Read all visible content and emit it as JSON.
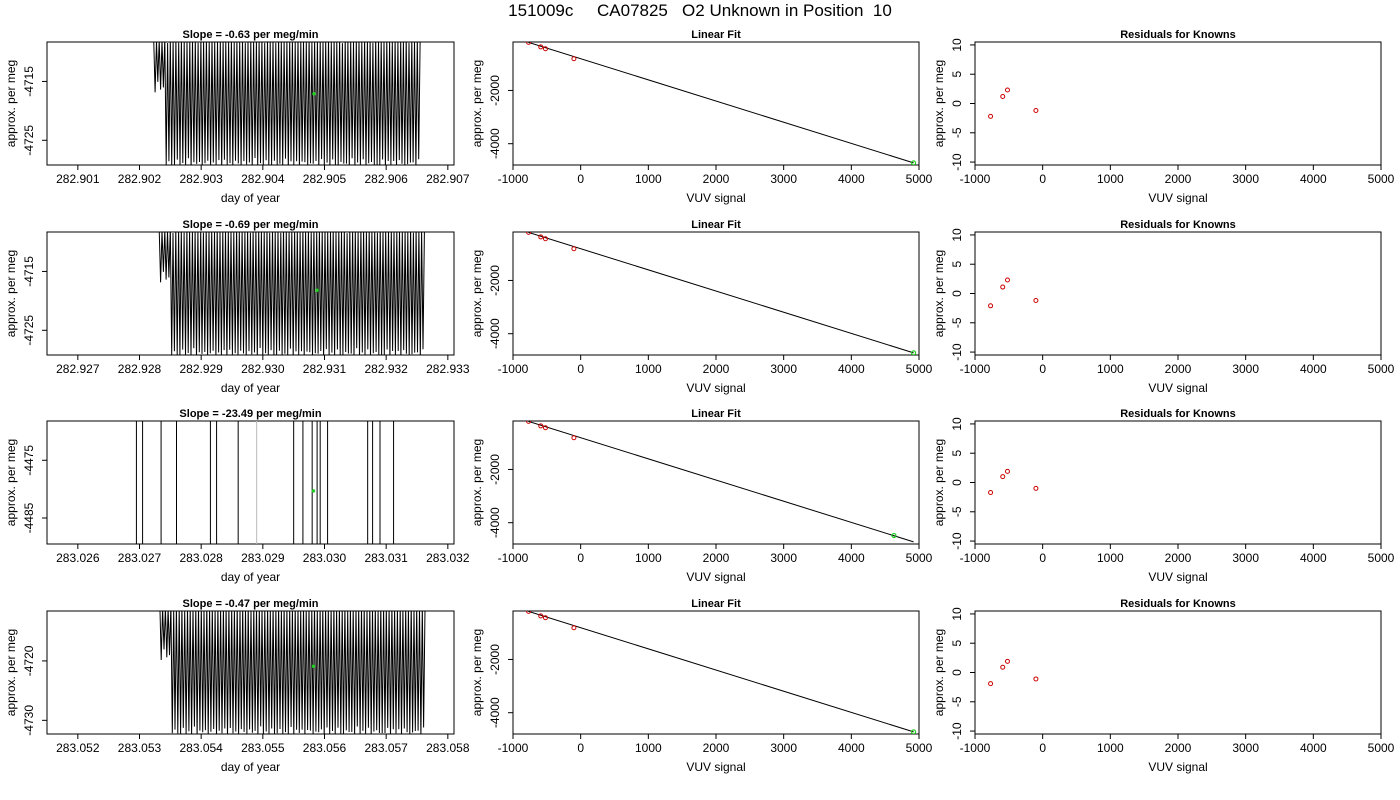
{
  "page": {
    "title": "151009c     CA07825   O2 Unknown in Position  10"
  },
  "colors": {
    "trace": "#000000",
    "known_points": "#cc0000",
    "unknown_point": "#22cc22",
    "axis": "#000000"
  },
  "chart_data": [
    {
      "type": "line",
      "title": "Slope =  -0.63  per meg/min",
      "xlabel": "day of year",
      "ylabel": "approx. per meg",
      "xlim": [
        282.9005,
        282.9071
      ],
      "ylim": [
        -4729.2,
        -4708.3
      ],
      "xticks": [
        282.901,
        282.902,
        282.903,
        282.904,
        282.905,
        282.906,
        282.907
      ],
      "xtick_labels": [
        "282.901",
        "282.902",
        "282.903",
        "282.904",
        "282.905",
        "282.906",
        "282.907"
      ],
      "yticks": [
        -4715,
        -4725
      ],
      "ytick_labels": [
        "-4715",
        "-4725"
      ],
      "trace": {
        "x_start": 282.90223,
        "x_end": 282.90655,
        "cycles": 96,
        "y_mid": -4718,
        "amplitude": 12,
        "regions": [
          {
            "from": 282.90223,
            "to": 282.90243,
            "high": -4708,
            "low": -4716
          },
          {
            "from": 282.90243,
            "to": 282.90655,
            "high": -4708,
            "low": -4729
          }
        ]
      },
      "highlight": {
        "x": 282.90483,
        "y": -4717.1
      }
    },
    {
      "type": "scatter",
      "title": "Linear Fit",
      "xlabel": "VUV signal",
      "ylabel": "approx. per meg",
      "xlim": [
        -1000,
        5000
      ],
      "ylim": [
        -4800,
        -180
      ],
      "xticks": [
        -1000,
        0,
        1000,
        2000,
        3000,
        4000,
        5000
      ],
      "xtick_labels": [
        "-1000",
        "0",
        "1000",
        "2000",
        "3000",
        "4000",
        "5000"
      ],
      "yticks": [
        -2000,
        -4000
      ],
      "ytick_labels": [
        "-2000",
        "-4000"
      ],
      "known_points": [
        [
          -770,
          -195
        ],
        [
          -590,
          -365
        ],
        [
          -520,
          -435
        ],
        [
          -100,
          -810
        ]
      ],
      "unknown_point": [
        4920,
        -4720
      ],
      "fit_line": [
        [
          -770,
          -195
        ],
        [
          4920,
          -4720
        ]
      ]
    },
    {
      "type": "scatter",
      "title": "Residuals for Knowns",
      "xlabel": "VUV signal",
      "ylabel": "approx. per meg",
      "xlim": [
        -1000,
        5000
      ],
      "ylim": [
        -10.5,
        10.5
      ],
      "xticks": [
        -1000,
        0,
        1000,
        2000,
        3000,
        4000,
        5000
      ],
      "xtick_labels": [
        "-1000",
        "0",
        "1000",
        "2000",
        "3000",
        "4000",
        "5000"
      ],
      "yticks": [
        10,
        5,
        0,
        -5,
        -10
      ],
      "ytick_labels": [
        "10",
        "5",
        "0",
        "-5",
        "-10"
      ],
      "points": [
        [
          -770,
          -2.2
        ],
        [
          -590,
          1.2
        ],
        [
          -520,
          2.3
        ],
        [
          -100,
          -1.2
        ]
      ]
    },
    {
      "type": "line",
      "title": "Slope =  -0.69  per meg/min",
      "xlabel": "day of year",
      "ylabel": "approx. per meg",
      "xlim": [
        282.9265,
        282.9331
      ],
      "ylim": [
        -4729.2,
        -4708.3
      ],
      "xticks": [
        282.927,
        282.928,
        282.929,
        282.93,
        282.931,
        282.932,
        282.933
      ],
      "xtick_labels": [
        "282.927",
        "282.928",
        "282.929",
        "282.930",
        "282.931",
        "282.932",
        "282.933"
      ],
      "yticks": [
        -4715,
        -4725
      ],
      "ytick_labels": [
        "-4715",
        "-4725"
      ],
      "trace": {
        "x_start": 282.92832,
        "x_end": 282.93262,
        "cycles": 96,
        "regions": [
          {
            "from": 282.92832,
            "to": 282.9285,
            "high": -4708,
            "low": -4716
          },
          {
            "from": 282.9285,
            "to": 282.93262,
            "high": -4708,
            "low": -4729
          }
        ]
      },
      "highlight": {
        "x": 282.93088,
        "y": -4718.2
      }
    },
    {
      "type": "scatter",
      "title": "Linear Fit",
      "xlabel": "VUV signal",
      "ylabel": "approx. per meg",
      "xlim": [
        -1000,
        5000
      ],
      "ylim": [
        -4800,
        -180
      ],
      "xticks": [
        -1000,
        0,
        1000,
        2000,
        3000,
        4000,
        5000
      ],
      "xtick_labels": [
        "-1000",
        "0",
        "1000",
        "2000",
        "3000",
        "4000",
        "5000"
      ],
      "yticks": [
        -2000,
        -4000
      ],
      "ytick_labels": [
        "-2000",
        "-4000"
      ],
      "known_points": [
        [
          -770,
          -195
        ],
        [
          -590,
          -365
        ],
        [
          -520,
          -435
        ],
        [
          -100,
          -810
        ]
      ],
      "unknown_point": [
        4920,
        -4720
      ],
      "fit_line": [
        [
          -770,
          -195
        ],
        [
          4920,
          -4720
        ]
      ]
    },
    {
      "type": "scatter",
      "title": "Residuals for Knowns",
      "xlabel": "VUV signal",
      "ylabel": "approx. per meg",
      "xlim": [
        -1000,
        5000
      ],
      "ylim": [
        -10.5,
        10.5
      ],
      "xticks": [
        -1000,
        0,
        1000,
        2000,
        3000,
        4000,
        5000
      ],
      "xtick_labels": [
        "-1000",
        "0",
        "1000",
        "2000",
        "3000",
        "4000",
        "5000"
      ],
      "yticks": [
        10,
        5,
        0,
        -5,
        -10
      ],
      "ytick_labels": [
        "10",
        "5",
        "0",
        "-5",
        "-10"
      ],
      "points": [
        [
          -770,
          -2.1
        ],
        [
          -590,
          1.1
        ],
        [
          -520,
          2.3
        ],
        [
          -100,
          -1.2
        ]
      ]
    },
    {
      "type": "line",
      "title": "Slope =  -23.49  per meg/min",
      "xlabel": "day of year",
      "ylabel": "approx. per meg",
      "xlim": [
        283.0255,
        283.0321
      ],
      "ylim": [
        -4489.5,
        -4468.2
      ],
      "xticks": [
        283.026,
        283.027,
        283.028,
        283.029,
        283.03,
        283.031,
        283.032
      ],
      "xtick_labels": [
        "283.026",
        "283.027",
        "283.028",
        "283.029",
        "283.030",
        "283.031",
        "283.032"
      ],
      "yticks": [
        -4475,
        -4485
      ],
      "ytick_labels": [
        "-4475",
        "-4485"
      ],
      "spikes": [
        283.02695,
        283.02705,
        283.02735,
        283.0276,
        283.02815,
        283.02825,
        283.0286,
        283.0295,
        283.02965,
        283.0298,
        283.02988,
        283.02993,
        283.03005,
        283.0307,
        283.03078,
        283.0309,
        283.03112
      ],
      "grey_spike": 283.0289,
      "highlight": {
        "x": 283.02982,
        "y": -4480.3
      }
    },
    {
      "type": "scatter",
      "title": "Linear Fit",
      "xlabel": "VUV signal",
      "ylabel": "approx. per meg",
      "xlim": [
        -1000,
        5000
      ],
      "ylim": [
        -4800,
        -180
      ],
      "xticks": [
        -1000,
        0,
        1000,
        2000,
        3000,
        4000,
        5000
      ],
      "xtick_labels": [
        "-1000",
        "0",
        "1000",
        "2000",
        "3000",
        "4000",
        "5000"
      ],
      "yticks": [
        -2000,
        -4000
      ],
      "ytick_labels": [
        "-2000",
        "-4000"
      ],
      "known_points": [
        [
          -770,
          -195
        ],
        [
          -590,
          -365
        ],
        [
          -520,
          -435
        ],
        [
          -100,
          -810
        ]
      ],
      "unknown_point": [
        4630,
        -4480
      ],
      "fit_line": [
        [
          -770,
          -195
        ],
        [
          4920,
          -4720
        ]
      ]
    },
    {
      "type": "scatter",
      "title": "Residuals for Knowns",
      "xlabel": "VUV signal",
      "ylabel": "approx. per meg",
      "xlim": [
        -1000,
        5000
      ],
      "ylim": [
        -10.5,
        10.5
      ],
      "xticks": [
        -1000,
        0,
        1000,
        2000,
        3000,
        4000,
        5000
      ],
      "xtick_labels": [
        "-1000",
        "0",
        "1000",
        "2000",
        "3000",
        "4000",
        "5000"
      ],
      "yticks": [
        10,
        5,
        0,
        -5,
        -10
      ],
      "ytick_labels": [
        "10",
        "5",
        "0",
        "-5",
        "-10"
      ],
      "points": [
        [
          -770,
          -1.7
        ],
        [
          -590,
          1.0
        ],
        [
          -520,
          1.9
        ],
        [
          -100,
          -1.0
        ]
      ]
    },
    {
      "type": "line",
      "title": "Slope =  -0.47  per meg/min",
      "xlabel": "day of year",
      "ylabel": "approx. per meg",
      "xlim": [
        283.0515,
        283.0581
      ],
      "ylim": [
        -4732.3,
        -4711.6
      ],
      "xticks": [
        283.052,
        283.053,
        283.054,
        283.055,
        283.056,
        283.057,
        283.058
      ],
      "xtick_labels": [
        "283.052",
        "283.053",
        "283.054",
        "283.055",
        "283.056",
        "283.057",
        "283.058"
      ],
      "yticks": [
        -4720,
        -4730
      ],
      "ytick_labels": [
        "-4720",
        "-4730"
      ],
      "trace": {
        "x_start": 283.05333,
        "x_end": 283.05763,
        "cycles": 96,
        "regions": [
          {
            "from": 283.05333,
            "to": 283.0535,
            "high": -4711,
            "low": -4719
          },
          {
            "from": 283.0535,
            "to": 283.05763,
            "high": -4711,
            "low": -4732
          }
        ]
      },
      "highlight": {
        "x": 283.05582,
        "y": -4720.9
      }
    },
    {
      "type": "scatter",
      "title": "Linear Fit",
      "xlabel": "VUV signal",
      "ylabel": "approx. per meg",
      "xlim": [
        -1000,
        5000
      ],
      "ylim": [
        -4800,
        -180
      ],
      "xticks": [
        -1000,
        0,
        1000,
        2000,
        3000,
        4000,
        5000
      ],
      "xtick_labels": [
        "-1000",
        "0",
        "1000",
        "2000",
        "3000",
        "4000",
        "5000"
      ],
      "yticks": [
        -2000,
        -4000
      ],
      "ytick_labels": [
        "-2000",
        "-4000"
      ],
      "known_points": [
        [
          -770,
          -195
        ],
        [
          -590,
          -365
        ],
        [
          -520,
          -435
        ],
        [
          -100,
          -810
        ]
      ],
      "unknown_point": [
        4920,
        -4720
      ],
      "fit_line": [
        [
          -770,
          -195
        ],
        [
          4920,
          -4720
        ]
      ]
    },
    {
      "type": "scatter",
      "title": "Residuals for Knowns",
      "xlabel": "VUV signal",
      "ylabel": "approx. per meg",
      "xlim": [
        -1000,
        5000
      ],
      "ylim": [
        -10.5,
        10.5
      ],
      "xticks": [
        -1000,
        0,
        1000,
        2000,
        3000,
        4000,
        5000
      ],
      "xtick_labels": [
        "-1000",
        "0",
        "1000",
        "2000",
        "3000",
        "4000",
        "5000"
      ],
      "yticks": [
        10,
        5,
        0,
        -5,
        -10
      ],
      "ytick_labels": [
        "10",
        "5",
        "0",
        "-5",
        "-10"
      ],
      "points": [
        [
          -770,
          -1.9
        ],
        [
          -590,
          0.9
        ],
        [
          -520,
          1.9
        ],
        [
          -100,
          -1.1
        ]
      ]
    }
  ]
}
